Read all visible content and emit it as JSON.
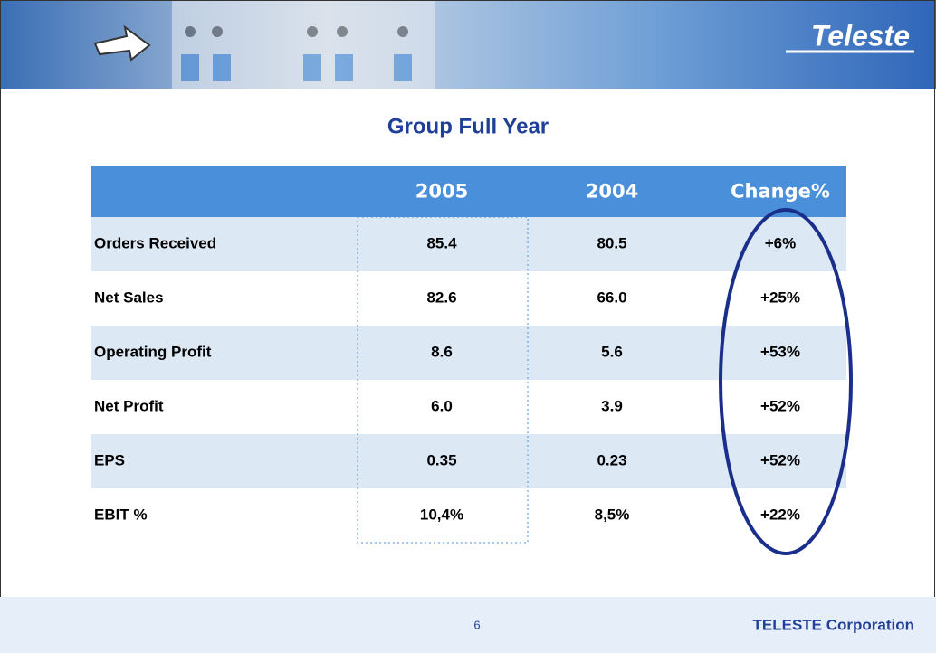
{
  "header": {
    "logo": "Teleste"
  },
  "title": "Group Full Year",
  "table": {
    "columns": [
      "2005",
      "2004",
      "Change%"
    ],
    "rows": [
      [
        "Orders Received",
        "85.4",
        "80.5",
        "+6%"
      ],
      [
        "Net Sales",
        "82.6",
        "66.0",
        "+25%"
      ],
      [
        "Operating Profit",
        "8.6",
        "5.6",
        "+53%"
      ],
      [
        "Net Profit",
        "6.0",
        "3.9",
        "+52%"
      ],
      [
        "EPS",
        "0.35",
        "0.23",
        "+52%"
      ],
      [
        "EBIT %",
        "10,4%",
        "8,5%",
        "+22%"
      ]
    ]
  },
  "footer": {
    "page": "6",
    "company": "TELESTE Corporation"
  }
}
